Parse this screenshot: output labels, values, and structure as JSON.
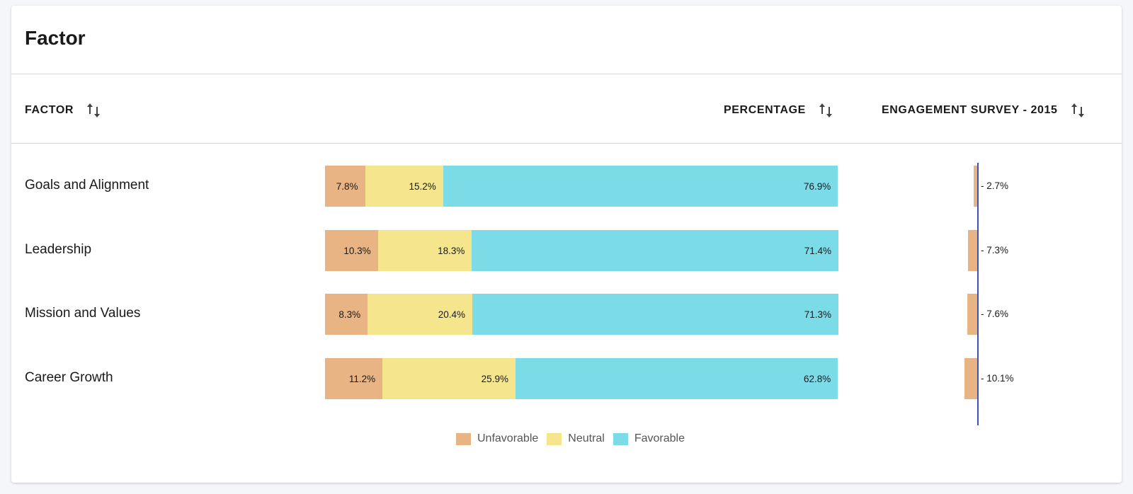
{
  "card": {
    "title": "Factor"
  },
  "table": {
    "headers": {
      "factor": "FACTOR",
      "percentage": "PERCENTAGE",
      "comparison": "ENGAGEMENT SURVEY - 2015"
    }
  },
  "colors": {
    "unfavorable": "#e9b483",
    "neutral": "#f5e58c",
    "favorable": "#7bdce8",
    "axis": "#3f51b5"
  },
  "rows": [
    {
      "factor": "Goals and Alignment",
      "unfavorable": "7.8%",
      "neutral": "15.2%",
      "favorable": "76.9%",
      "diff": "- 2.7%"
    },
    {
      "factor": "Leadership",
      "unfavorable": "10.3%",
      "neutral": "18.3%",
      "favorable": "71.4%",
      "diff": "- 7.3%"
    },
    {
      "factor": "Mission and Values",
      "unfavorable": "8.3%",
      "neutral": "20.4%",
      "favorable": "71.3%",
      "diff": "- 7.6%"
    },
    {
      "factor": "Career Growth",
      "unfavorable": "11.2%",
      "neutral": "25.9%",
      "favorable": "62.8%",
      "diff": "- 10.1%"
    }
  ],
  "chart_data": {
    "type": "bar",
    "stacked": true,
    "orientation": "horizontal",
    "categories": [
      "Goals and Alignment",
      "Leadership",
      "Mission and Values",
      "Career Growth"
    ],
    "series": [
      {
        "name": "Unfavorable",
        "values": [
          7.8,
          10.3,
          8.3,
          11.2
        ]
      },
      {
        "name": "Neutral",
        "values": [
          15.2,
          18.3,
          20.4,
          25.9
        ]
      },
      {
        "name": "Favorable",
        "values": [
          76.9,
          71.4,
          71.3,
          62.8
        ]
      }
    ],
    "comparison": {
      "values": [
        -2.7,
        -7.3,
        -7.6,
        -10.1
      ]
    },
    "legend_position": "bottom"
  },
  "legend": {
    "items": [
      "Unfavorable",
      "Neutral",
      "Favorable"
    ]
  }
}
